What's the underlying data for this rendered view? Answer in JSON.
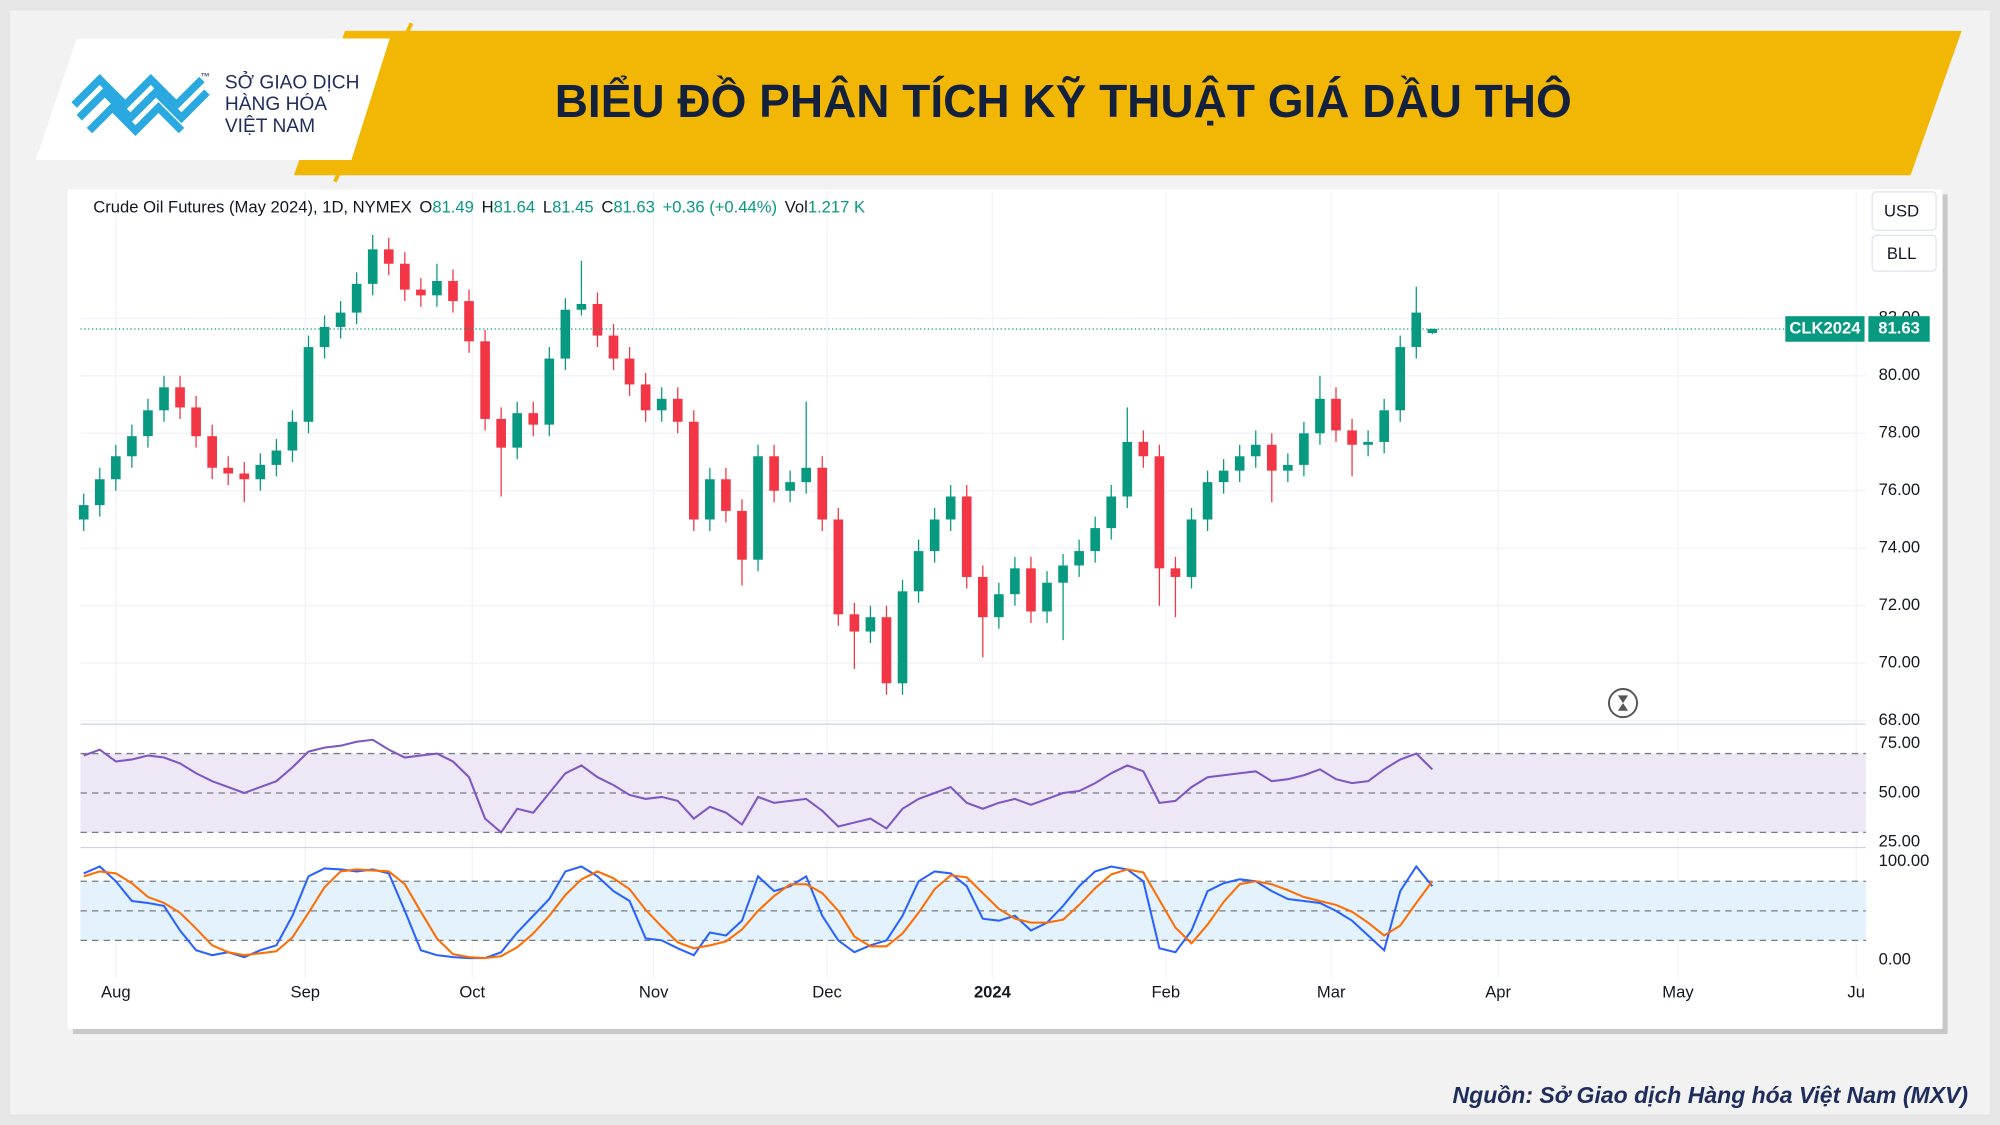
{
  "header": {
    "title": "BIỂU ĐỒ PHÂN TÍCH KỸ THUẬT GIÁ DẦU THÔ",
    "logo_lines": [
      "SỞ GIAO DỊCH",
      "HÀNG HÓA",
      "VIỆT NAM"
    ],
    "logo_tm": "™"
  },
  "source": "Nguồn: Sở Giao dịch Hàng hóa Việt Nam (MXV)",
  "chart_data": [
    {
      "type": "candlestick",
      "title": "Crude Oil Futures (May 2024), 1D, NYMEX",
      "ohlc_keys": [
        "O",
        "H",
        "L",
        "C"
      ],
      "change": "+0.36 (+0.44%)",
      "volume_label": "Vol",
      "volume": "1.217 K",
      "currency": "USD",
      "unit": "BLL",
      "badge": "CLK2024",
      "up_color": "#089981",
      "down_color": "#f23645",
      "grid": true,
      "xlim": [
        -0.2,
        111
      ],
      "xticks": [
        {
          "value": 2.0,
          "label": "Aug"
        },
        {
          "value": 13.8,
          "label": "Sep"
        },
        {
          "value": 24.2,
          "label": "Oct"
        },
        {
          "value": 35.5,
          "label": "Nov"
        },
        {
          "value": 46.3,
          "label": "Dec"
        },
        {
          "value": 56.6,
          "label": "2024"
        },
        {
          "value": 67.4,
          "label": "Feb"
        },
        {
          "value": 77.7,
          "label": "Mar"
        },
        {
          "value": 88.1,
          "label": "Apr"
        },
        {
          "value": 99.3,
          "label": "May"
        },
        {
          "value": 110.4,
          "label": "Ju"
        }
      ],
      "ylim": [
        67.9,
        86.4
      ],
      "yticks": [
        {
          "value": 68,
          "label": "68.00"
        },
        {
          "value": 70,
          "label": "70.00"
        },
        {
          "value": 72,
          "label": "72.00"
        },
        {
          "value": 74,
          "label": "74.00"
        },
        {
          "value": 76,
          "label": "76.00"
        },
        {
          "value": 78,
          "label": "78.00"
        },
        {
          "value": 80,
          "label": "80.00"
        },
        {
          "value": 82,
          "label": "82.00"
        }
      ],
      "ohlc": [
        [
          75.0,
          75.9,
          74.6,
          75.5
        ],
        [
          75.5,
          76.8,
          75.1,
          76.4
        ],
        [
          76.4,
          77.6,
          76.0,
          77.2
        ],
        [
          77.2,
          78.3,
          76.8,
          77.9
        ],
        [
          77.9,
          79.2,
          77.5,
          78.8
        ],
        [
          78.8,
          80.0,
          78.4,
          79.6
        ],
        [
          79.6,
          80.0,
          78.5,
          78.9
        ],
        [
          78.9,
          79.3,
          77.5,
          77.9
        ],
        [
          77.9,
          78.3,
          76.4,
          76.8
        ],
        [
          76.8,
          77.2,
          76.2,
          76.6
        ],
        [
          76.6,
          77.0,
          75.6,
          76.4
        ],
        [
          76.4,
          77.3,
          76.0,
          76.9
        ],
        [
          76.9,
          77.8,
          76.5,
          77.4
        ],
        [
          77.4,
          78.8,
          77.0,
          78.4
        ],
        [
          78.4,
          81.4,
          78.0,
          81.0
        ],
        [
          81.0,
          82.1,
          80.6,
          81.7
        ],
        [
          81.7,
          82.6,
          81.3,
          82.2
        ],
        [
          82.2,
          83.6,
          81.8,
          83.2
        ],
        [
          83.2,
          84.9,
          82.8,
          84.4
        ],
        [
          84.4,
          84.8,
          83.5,
          83.9
        ],
        [
          83.9,
          84.3,
          82.6,
          83.0
        ],
        [
          83.0,
          83.4,
          82.4,
          82.8
        ],
        [
          82.8,
          83.9,
          82.4,
          83.3
        ],
        [
          83.3,
          83.7,
          82.2,
          82.6
        ],
        [
          82.6,
          83.0,
          80.8,
          81.2
        ],
        [
          81.2,
          81.6,
          78.1,
          78.5
        ],
        [
          78.5,
          78.9,
          75.8,
          77.5
        ],
        [
          77.5,
          79.1,
          77.1,
          78.7
        ],
        [
          78.7,
          79.1,
          77.9,
          78.3
        ],
        [
          78.3,
          81.0,
          77.9,
          80.6
        ],
        [
          80.6,
          82.7,
          80.2,
          82.3
        ],
        [
          82.3,
          84.0,
          82.1,
          82.5
        ],
        [
          82.5,
          82.9,
          81.0,
          81.4
        ],
        [
          81.4,
          81.8,
          80.2,
          80.6
        ],
        [
          80.6,
          81.0,
          79.3,
          79.7
        ],
        [
          79.7,
          80.1,
          78.4,
          78.8
        ],
        [
          78.8,
          79.6,
          78.4,
          79.2
        ],
        [
          79.2,
          79.6,
          78.0,
          78.4
        ],
        [
          78.4,
          78.8,
          74.6,
          75.0
        ],
        [
          75.0,
          76.8,
          74.6,
          76.4
        ],
        [
          76.4,
          76.8,
          74.9,
          75.3
        ],
        [
          75.3,
          75.7,
          72.7,
          73.6
        ],
        [
          73.6,
          77.6,
          73.2,
          77.2
        ],
        [
          77.2,
          77.6,
          75.6,
          76.0
        ],
        [
          76.0,
          76.7,
          75.6,
          76.3
        ],
        [
          76.3,
          79.1,
          75.9,
          76.8
        ],
        [
          76.8,
          77.2,
          74.6,
          75.0
        ],
        [
          75.0,
          75.4,
          71.3,
          71.7
        ],
        [
          71.7,
          72.1,
          69.8,
          71.1
        ],
        [
          71.1,
          72.0,
          70.7,
          71.6
        ],
        [
          71.6,
          72.0,
          68.9,
          69.3
        ],
        [
          69.3,
          72.9,
          68.9,
          72.5
        ],
        [
          72.5,
          74.3,
          72.1,
          73.9
        ],
        [
          73.9,
          75.4,
          73.5,
          75.0
        ],
        [
          75.0,
          76.2,
          74.6,
          75.8
        ],
        [
          75.8,
          76.2,
          72.6,
          73.0
        ],
        [
          73.0,
          73.4,
          70.2,
          71.6
        ],
        [
          71.6,
          72.8,
          71.2,
          72.4
        ],
        [
          72.4,
          73.7,
          72.0,
          73.3
        ],
        [
          73.3,
          73.7,
          71.4,
          71.8
        ],
        [
          71.8,
          73.2,
          71.4,
          72.8
        ],
        [
          72.8,
          73.8,
          70.8,
          73.4
        ],
        [
          73.4,
          74.3,
          73.0,
          73.9
        ],
        [
          73.9,
          75.1,
          73.5,
          74.7
        ],
        [
          74.7,
          76.2,
          74.3,
          75.8
        ],
        [
          75.8,
          78.9,
          75.4,
          77.7
        ],
        [
          77.7,
          78.1,
          76.8,
          77.2
        ],
        [
          77.2,
          77.6,
          72.0,
          73.3
        ],
        [
          73.3,
          73.7,
          71.6,
          73.0
        ],
        [
          73.0,
          75.4,
          72.6,
          75.0
        ],
        [
          75.0,
          76.7,
          74.6,
          76.3
        ],
        [
          76.3,
          77.1,
          75.9,
          76.7
        ],
        [
          76.7,
          77.6,
          76.3,
          77.2
        ],
        [
          77.2,
          78.1,
          76.8,
          77.6
        ],
        [
          77.6,
          78.0,
          75.6,
          76.7
        ],
        [
          76.7,
          77.3,
          76.3,
          76.9
        ],
        [
          76.9,
          78.4,
          76.5,
          78.0
        ],
        [
          78.0,
          80.0,
          77.6,
          79.2
        ],
        [
          79.2,
          79.6,
          77.7,
          78.1
        ],
        [
          78.1,
          78.5,
          76.5,
          77.6
        ],
        [
          77.6,
          78.1,
          77.2,
          77.7
        ],
        [
          77.7,
          79.2,
          77.3,
          78.8
        ],
        [
          78.8,
          81.4,
          78.4,
          81.0
        ],
        [
          81.0,
          83.1,
          80.6,
          82.2
        ],
        [
          81.49,
          81.64,
          81.45,
          81.63
        ]
      ]
    },
    {
      "type": "line",
      "ylim": [
        23,
        84.6
      ],
      "yticks": [
        {
          "value": 25,
          "label": "25.00"
        },
        {
          "value": 50,
          "label": "50.00"
        },
        {
          "value": 75,
          "label": "75.00"
        }
      ],
      "reference_lines": [
        70,
        50,
        30
      ],
      "band_color": "#ede7f6",
      "series": [
        {
          "color": "#7e57c2",
          "values": [
            69,
            72,
            66,
            67,
            69,
            68,
            65,
            60,
            56,
            53,
            50,
            53,
            56,
            63,
            71,
            73,
            74,
            76,
            77,
            72,
            68,
            69,
            70,
            66,
            58,
            37,
            30,
            42,
            40,
            50,
            60,
            64,
            58,
            54,
            49,
            47,
            48,
            46,
            37,
            43,
            40,
            34,
            48,
            45,
            46,
            47,
            41,
            33,
            35,
            37,
            32,
            42,
            47,
            50,
            53,
            45,
            42,
            45,
            47,
            44,
            47,
            50,
            51,
            55,
            60,
            64,
            61,
            45,
            46,
            53,
            58,
            59,
            60,
            61,
            56,
            57,
            59,
            62,
            57,
            55,
            56,
            62,
            67,
            70,
            62
          ]
        }
      ]
    },
    {
      "type": "line",
      "ylim": [
        -18,
        113
      ],
      "yticks": [
        {
          "value": 0,
          "label": "0.00"
        },
        {
          "value": 100,
          "label": "100.00"
        }
      ],
      "reference_lines": [
        80,
        50,
        20
      ],
      "band_color": "#e3f2fd",
      "series": [
        {
          "color": "#2962ff",
          "values": [
            88,
            95,
            80,
            60,
            58,
            55,
            30,
            10,
            5,
            8,
            3,
            10,
            15,
            45,
            85,
            93,
            92,
            90,
            92,
            88,
            50,
            10,
            5,
            3,
            2,
            2,
            8,
            28,
            45,
            62,
            90,
            95,
            85,
            70,
            60,
            22,
            20,
            12,
            5,
            28,
            25,
            40,
            85,
            70,
            75,
            85,
            45,
            20,
            8,
            15,
            20,
            45,
            80,
            90,
            88,
            75,
            42,
            40,
            45,
            30,
            38,
            55,
            75,
            90,
            95,
            92,
            80,
            12,
            8,
            30,
            70,
            78,
            82,
            80,
            70,
            62,
            60,
            58,
            50,
            40,
            25,
            10,
            70,
            95,
            75
          ]
        },
        {
          "color": "#ff6d00",
          "values": [
            85,
            90,
            88,
            78,
            64,
            58,
            48,
            32,
            15,
            8,
            5,
            7,
            9,
            23,
            48,
            74,
            90,
            92,
            91,
            90,
            77,
            49,
            22,
            6,
            3,
            2,
            4,
            13,
            27,
            45,
            66,
            82,
            90,
            83,
            72,
            51,
            34,
            18,
            12,
            15,
            19,
            31,
            50,
            65,
            77,
            77,
            68,
            50,
            24,
            14,
            14,
            27,
            48,
            72,
            86,
            84,
            68,
            52,
            42,
            38,
            38,
            41,
            56,
            73,
            87,
            92,
            89,
            61,
            33,
            17,
            36,
            59,
            77,
            80,
            77,
            71,
            64,
            60,
            56,
            49,
            38,
            25,
            35,
            58,
            80
          ]
        }
      ]
    }
  ]
}
